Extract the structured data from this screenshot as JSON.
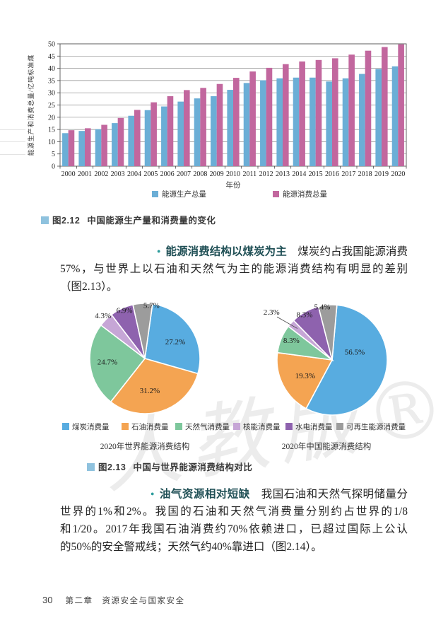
{
  "watermark": "人教版®",
  "figure_2_12": {
    "caption_number": "图2.12",
    "caption": "中国能源生产量和消费量的变化",
    "xlabel": "年份",
    "legend": [
      {
        "label": "能源生产总量",
        "color": "#6BAED6"
      },
      {
        "label": "能源消费总量",
        "color": "#C2679E"
      }
    ]
  },
  "chart_data": [
    {
      "type": "bar",
      "title": "中国能源生产量和消费量的变化",
      "categories": [
        "2000",
        "2001",
        "2002",
        "2003",
        "2004",
        "2005",
        "2006",
        "2007",
        "2008",
        "2009",
        "2010",
        "2011",
        "2012",
        "2013",
        "2014",
        "2015",
        "2016",
        "2017",
        "2018",
        "2019",
        "2020"
      ],
      "series": [
        {
          "name": "能源生产总量",
          "color": "#6BAED6",
          "values": [
            13.5,
            14.4,
            15.1,
            17.6,
            20.6,
            22.9,
            24.4,
            26.4,
            27.7,
            28.6,
            31.2,
            34.0,
            35.1,
            35.9,
            36.2,
            36.2,
            34.6,
            35.9,
            37.7,
            39.7,
            40.8
          ]
        },
        {
          "name": "能源消费总量",
          "color": "#C2679E",
          "values": [
            14.7,
            15.5,
            16.9,
            19.7,
            23.0,
            26.1,
            28.6,
            31.1,
            32.0,
            33.6,
            36.1,
            38.7,
            40.2,
            41.7,
            42.8,
            43.4,
            44.1,
            45.6,
            47.2,
            48.7,
            49.8
          ]
        }
      ],
      "xlabel": "年份",
      "ylabel": "能源生产和消费总量/亿吨标准煤",
      "ylim": [
        0,
        50
      ],
      "ytick_step": 5,
      "grid": true,
      "legend_position": "bottom"
    },
    {
      "type": "pie",
      "title": "2020年世界能源消费结构",
      "start_angle": 8,
      "slices": [
        {
          "label": "煤炭消费量",
          "value": 27.2,
          "pct": "27.2%",
          "color": "#58ACE0",
          "label_pos": [
            0.55,
            -0.31
          ]
        },
        {
          "label": "石油消费量",
          "value": 31.2,
          "pct": "31.2%",
          "color": "#F4A452",
          "label_pos": [
            0.09,
            0.58
          ]
        },
        {
          "label": "天然气消费量",
          "value": 24.7,
          "pct": "24.7%",
          "color": "#7EC79C",
          "label_pos": [
            -0.68,
            0.06
          ]
        },
        {
          "label": "核能消费量",
          "value": 4.3,
          "pct": "4.3%",
          "color": "#C6A6D6",
          "label_pos": [
            -0.76,
            -0.78
          ]
        },
        {
          "label": "水电消费量",
          "value": 6.9,
          "pct": "6.9%",
          "color": "#8E62AE",
          "label_pos": [
            -0.37,
            -0.88
          ]
        },
        {
          "label": "可再生能源消费量",
          "value": 5.7,
          "pct": "5.7%",
          "color": "#9C9C9C",
          "label_pos": [
            0.12,
            -0.97
          ]
        }
      ]
    },
    {
      "type": "pie",
      "title": "2020年中国能源消费结构",
      "start_angle": 5,
      "slices": [
        {
          "label": "煤炭消费量",
          "value": 56.5,
          "pct": "56.5%",
          "color": "#58ACE0",
          "label_pos": [
            0.41,
            -0.15
          ]
        },
        {
          "label": "石油消费量",
          "value": 19.3,
          "pct": "19.3%",
          "color": "#F4A452",
          "label_pos": [
            -0.49,
            0.28
          ]
        },
        {
          "label": "天然气消费量",
          "value": 8.3,
          "pct": "8.3%",
          "color": "#7EC79C",
          "label_pos": [
            -0.74,
            -0.36
          ]
        },
        {
          "label": "核能消费量",
          "value": 2.3,
          "pct": "2.3%",
          "color": "#C6A6D6",
          "label_pos": [
            -1.1,
            -0.87
          ],
          "leader": [
            -1.0,
            -0.78,
            -0.63,
            -0.57
          ]
        },
        {
          "label": "水电消费量",
          "value": 8.3,
          "pct": "8.3%",
          "color": "#8E62AE",
          "label_pos": [
            -0.5,
            -0.83
          ]
        },
        {
          "label": "可再生能源消费量",
          "value": 5.4,
          "pct": "5.4%",
          "color": "#9C9C9C",
          "label_pos": [
            -0.18,
            -0.97
          ]
        }
      ]
    }
  ],
  "figure_2_13": {
    "caption_number": "图2.13",
    "caption": "中国与世界能源消费结构对比",
    "left_title": "2020年世界能源消费结构",
    "right_title": "2020年中国能源消费结构",
    "legend": [
      {
        "label": "煤炭消费量",
        "color": "#58ACE0"
      },
      {
        "label": "石油消费量",
        "color": "#F4A452"
      },
      {
        "label": "天然气消费量",
        "color": "#7EC79C"
      },
      {
        "label": "核能消费量",
        "color": "#C6A6D6"
      },
      {
        "label": "水电消费量",
        "color": "#8E62AE"
      },
      {
        "label": "可再生能源消费量",
        "color": "#9C9C9C"
      }
    ]
  },
  "paragraph_coal": {
    "bullet": "●",
    "heading": "能源消费结构以煤炭为主",
    "line1_rest": "　煤炭约占我国能源消费总量的",
    "line2": "57%，与世界上以石油和天然气为主的能源消费结构有明显的差别",
    "line3": "（图2.13）。"
  },
  "paragraph_oilgas": {
    "bullet": "●",
    "heading": "油气资源相对短缺",
    "line1_rest": "　我国石油和天然气探明储量分别只约占",
    "line2": "世界的1%和2%。我国的石油和天然气消费量分别约占世界的1/8",
    "line3": "和1/20。2017年我国石油消费约70%依赖进口，已超过国际上公认",
    "line4": "的50%的安全警戒线；天然气约40%靠进口（图2.14）。"
  },
  "footer": {
    "page_number": "30",
    "chapter": "第二章　资源安全与国家安全"
  }
}
